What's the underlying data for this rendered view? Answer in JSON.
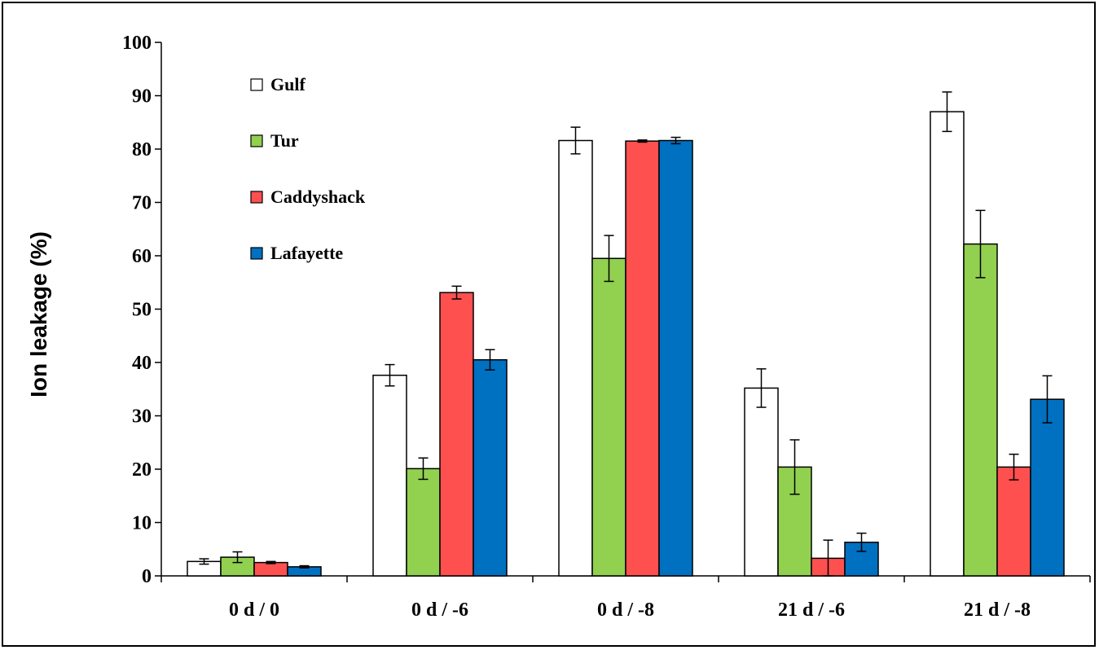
{
  "chart_data": {
    "type": "bar",
    "title": "",
    "xlabel": "",
    "ylabel": "Ion leakage (%)",
    "ylim": [
      0,
      100
    ],
    "yticks": [
      0,
      10,
      20,
      30,
      40,
      50,
      60,
      70,
      80,
      90,
      100
    ],
    "grid": false,
    "legend_position": "top-left",
    "categories": [
      "0 d / 0",
      "0 d / -6",
      "0 d / -8",
      "21 d / -6",
      "21 d / -8"
    ],
    "series": [
      {
        "name": "Gulf",
        "color": "#ffffff",
        "values": [
          2.7,
          37.6,
          81.6,
          35.2,
          87.0
        ],
        "errors": [
          0.5,
          2.0,
          2.5,
          3.6,
          3.7
        ]
      },
      {
        "name": "Tur",
        "color": "#92d050",
        "values": [
          3.5,
          20.1,
          59.5,
          20.4,
          62.2
        ],
        "errors": [
          1.0,
          2.0,
          4.3,
          5.1,
          6.3
        ]
      },
      {
        "name": "Caddyshack",
        "color": "#ff5050",
        "values": [
          2.5,
          53.1,
          81.5,
          3.3,
          20.4
        ],
        "errors": [
          0.2,
          1.2,
          0.2,
          3.4,
          2.4
        ]
      },
      {
        "name": "Lafayette",
        "color": "#0070c0",
        "values": [
          1.7,
          40.5,
          81.6,
          6.3,
          33.1
        ],
        "errors": [
          0.2,
          1.9,
          0.6,
          1.7,
          4.4
        ]
      }
    ]
  }
}
